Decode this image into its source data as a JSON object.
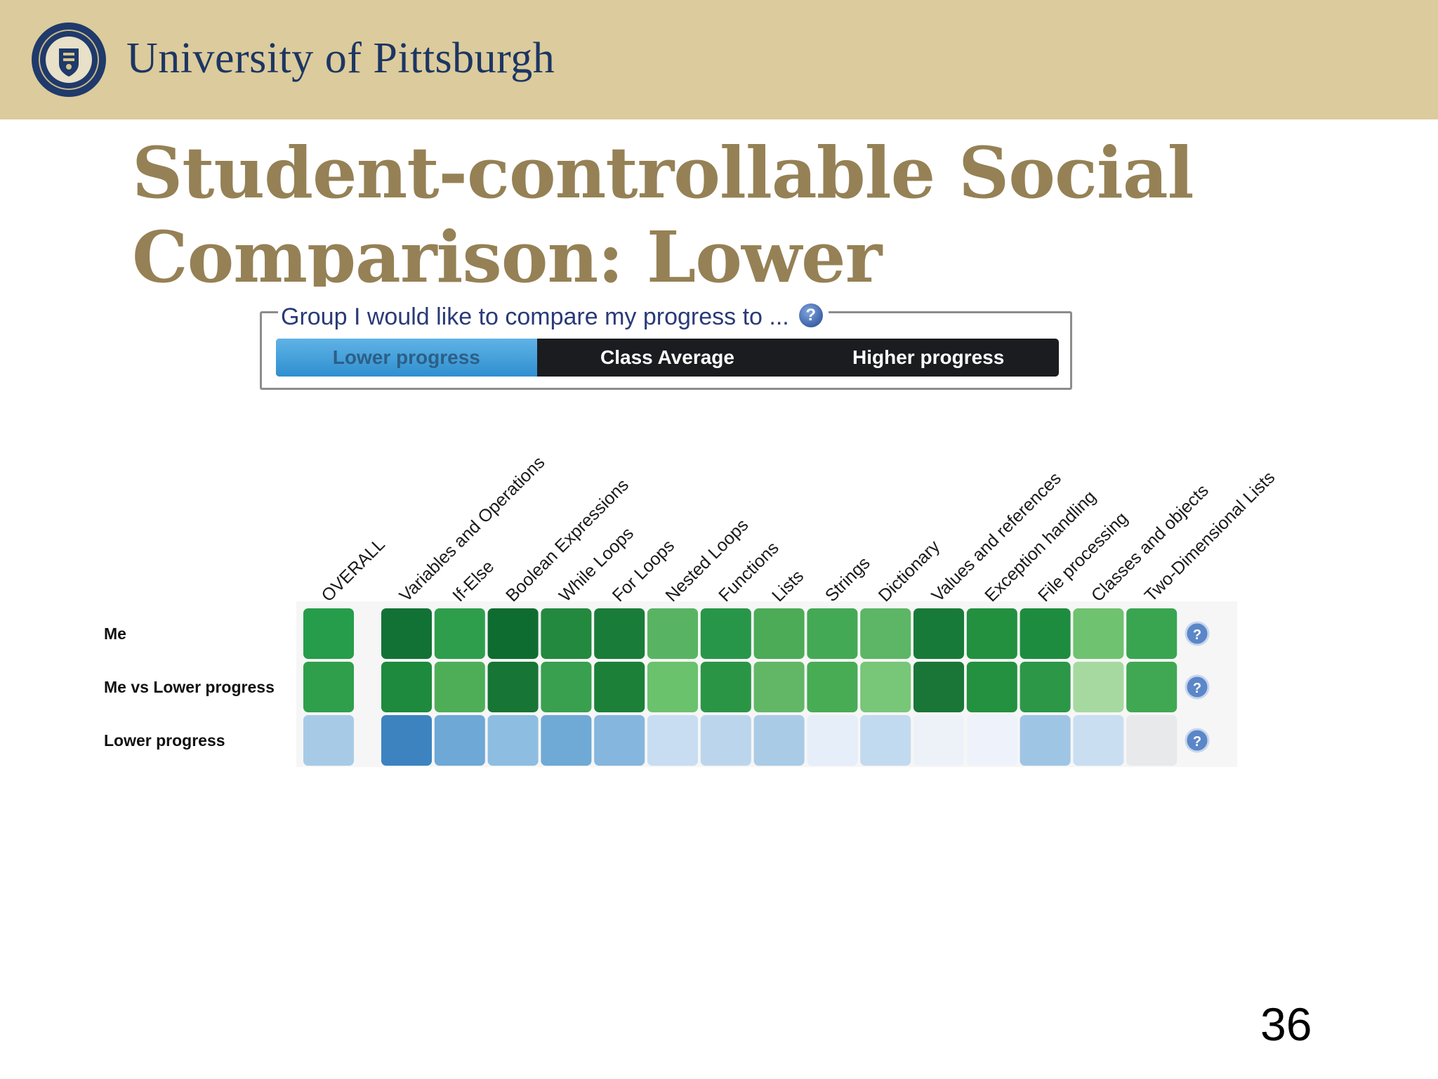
{
  "header": {
    "university": "University of Pittsburgh",
    "seal_text": "UNIVERSITY OF PITTSBURGH"
  },
  "slide": {
    "title": "Student-controllable Social Comparison: Lower",
    "page_number": "36"
  },
  "group_selector": {
    "legend": "Group I would like to compare my progress to ...",
    "help_glyph": "?",
    "options": [
      "Lower progress",
      "Class Average",
      "Higher progress"
    ],
    "selected": "Lower progress"
  },
  "heatmap": {
    "columns": [
      "OVERALL",
      "Variables and Operations",
      "If-Else",
      "Boolean Expressions",
      "While Loops",
      "For Loops",
      "Nested Loops",
      "Functions",
      "Lists",
      "Strings",
      "Dictionary",
      "Values and references",
      "Exception handling",
      "File processing",
      "Classes and objects",
      "Two-Dimensional Lists"
    ],
    "rows": [
      {
        "label": "Me",
        "colors": [
          "#269d4a",
          "#127236",
          "#2e9e4c",
          "#0f6c31",
          "#23893f",
          "#1a7c39",
          "#58b462",
          "#289649",
          "#4bab57",
          "#44a954",
          "#5cb665",
          "#187a38",
          "#22903f",
          "#1e8c3e",
          "#6fc26f",
          "#3aa550"
        ]
      },
      {
        "label": "Me vs Lower progress",
        "colors": [
          "#2f9f4c",
          "#1d8a3d",
          "#4eae58",
          "#177535",
          "#38a04e",
          "#1c8039",
          "#6ac26c",
          "#2b9546",
          "#61b766",
          "#48ac55",
          "#78c677",
          "#197637",
          "#23913f",
          "#2b9747",
          "#a6d9a0",
          "#40a853"
        ]
      },
      {
        "label": "Lower progress",
        "colors": [
          "#a7cbe6",
          "#3c83c0",
          "#6ea8d6",
          "#8dbde1",
          "#6fa9d5",
          "#85b6de",
          "#c8ddf1",
          "#bbd6ec",
          "#aacbe6",
          "#e5eef9",
          "#c2daef",
          "#edf2f9",
          "#eef2fb",
          "#9fc5e5",
          "#c9def1",
          "#e8e9ea"
        ]
      }
    ]
  },
  "icons": {
    "row_help": "help-icon",
    "seal": "university-seal-icon"
  },
  "colors": {
    "header_band": "#dccb9c",
    "title": "#958155",
    "university_name": "#1c3663",
    "selected_segment": "#3d9fd9"
  }
}
